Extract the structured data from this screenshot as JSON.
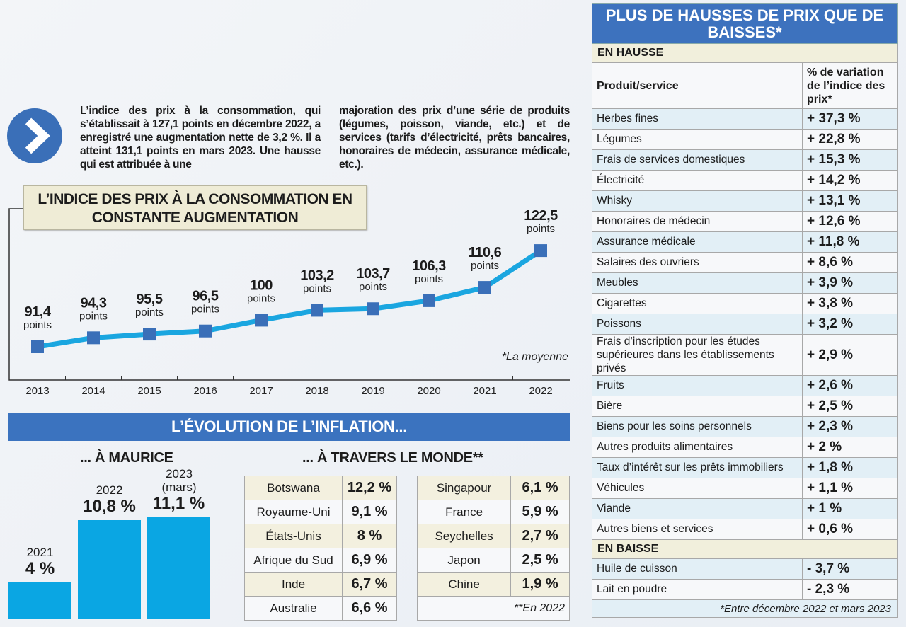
{
  "intro": {
    "col1": "L’indice des prix à la consommation, qui s’établissait à 127,1 points en décembre 2022, a enregistré une augmentation nette de 3,2 %. Il a atteint 131,1 points en mars 2023. Une hausse qui est attribuée à une",
    "col2": "majoration des prix d’une série de produits (légumes, poisson, viande, etc.) et de services (tarifs d’électricité, prêts bancaires, honoraires de médecin, assurance médicale, etc.)."
  },
  "chart_data": [
    {
      "type": "line",
      "title": "L’INDICE DES PRIX À LA CONSOMMATION EN CONSTANTE AUGMENTATION",
      "categories": [
        "2013",
        "2014",
        "2015",
        "2016",
        "2017",
        "2018",
        "2019",
        "2020",
        "2021",
        "2022"
      ],
      "values": [
        91.4,
        94.3,
        95.5,
        96.5,
        100,
        103.2,
        103.7,
        106.3,
        110.6,
        122.5
      ],
      "labels": [
        "91,4",
        "94,3",
        "95,5",
        "96,5",
        "100",
        "103,2",
        "103,7",
        "106,3",
        "110,6",
        "122,5"
      ],
      "unit": "points",
      "note": "*La moyenne",
      "line_color": "#1aa6e0",
      "marker_color": "#3a6fb8"
    },
    {
      "type": "bar",
      "title": "... À MAURICE",
      "categories": [
        "2021",
        "2022",
        "2023 (mars)"
      ],
      "values": [
        4,
        10.8,
        11.1
      ],
      "labels": [
        "4 %",
        "10,8 %",
        "11,1 %"
      ],
      "color": "#0aa6e3"
    }
  ],
  "inflation": {
    "banner": "L’ÉVOLUTION DE L’INFLATION...",
    "monde_title": "... À TRAVERS LE MONDE**",
    "monde_left": [
      [
        "Botswana",
        "12,2 %"
      ],
      [
        "Royaume-Uni",
        "9,1 %"
      ],
      [
        "États-Unis",
        "8 %"
      ],
      [
        "Afrique du Sud",
        "6,9 %"
      ],
      [
        "Inde",
        "6,7 %"
      ],
      [
        "Australie",
        "6,6 %"
      ]
    ],
    "monde_right": [
      [
        "Singapour",
        "6,1 %"
      ],
      [
        "France",
        "5,9 %"
      ],
      [
        "Seychelles",
        "2,7 %"
      ],
      [
        "Japon",
        "2,5 %"
      ],
      [
        "Chine",
        "1,9 %"
      ]
    ],
    "monde_note": "**En 2022"
  },
  "prices": {
    "title": "PLUS DE HAUSSES DE PRIX QUE DE BAISSES*",
    "hausse_label": "EN HAUSSE",
    "col1": "Produit/service",
    "col2": "% de variation de l’indice des prix*",
    "hausse": [
      [
        "Herbes fines",
        "+ 37,3 %"
      ],
      [
        "Légumes",
        "+ 22,8 %"
      ],
      [
        "Frais de services domestiques",
        "+ 15,3 %"
      ],
      [
        "Électricité",
        "+ 14,2 %"
      ],
      [
        "Whisky",
        "+ 13,1 %"
      ],
      [
        "Honoraires de médecin",
        "+ 12,6 %"
      ],
      [
        "Assurance médicale",
        "+ 11,8 %"
      ],
      [
        "Salaires des ouvriers",
        "+ 8,6 %"
      ],
      [
        "Meubles",
        "+ 3,9 %"
      ],
      [
        "Cigarettes",
        "+ 3,8 %"
      ],
      [
        "Poissons",
        "+ 3,2 %"
      ],
      [
        "Frais d’inscription pour les études supérieures dans les établissements privés",
        "+ 2,9 %"
      ],
      [
        "Fruits",
        "+ 2,6 %"
      ],
      [
        "Bière",
        "+ 2,5 %"
      ],
      [
        "Biens pour les soins personnels",
        "+ 2,3 %"
      ],
      [
        "Autres produits alimentaires",
        "+ 2 %"
      ],
      [
        "Taux d’intérêt sur les prêts immobiliers",
        "+ 1,8 %"
      ],
      [
        "Véhicules",
        "+ 1,1 %"
      ],
      [
        "Viande",
        "+ 1 %"
      ],
      [
        "Autres biens et services",
        "+ 0,6 %"
      ]
    ],
    "baisse_label": "EN BAISSE",
    "baisse": [
      [
        "Huile de cuisson",
        "- 3,7 %"
      ],
      [
        "Lait en poudre",
        "- 2,3 %"
      ]
    ],
    "footnote": "*Entre décembre 2022 et mars 2023"
  }
}
